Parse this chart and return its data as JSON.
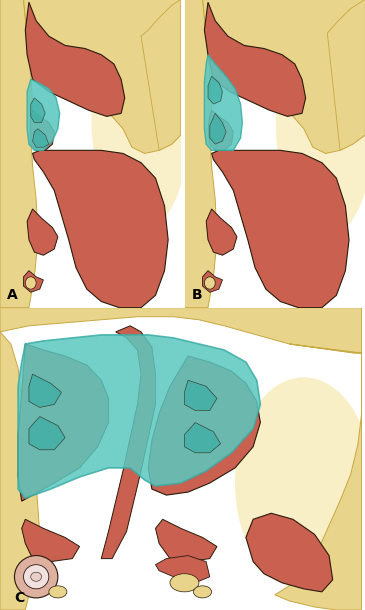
{
  "bg_color": "#ffffff",
  "label_A": "A",
  "label_B": "B",
  "label_C": "C",
  "teal_color": "#5bc8c0",
  "teal_dark": "#3aada5",
  "teal_light": "#80d8d0",
  "red_tissue": "#c96050",
  "red_dark": "#a84030",
  "red_light": "#d88070",
  "bone_color": "#e8d48a",
  "bone_outline": "#c8a840",
  "outline_color": "#2a1a0a",
  "bg_yellow": "#f0d890",
  "label_fontsize": 10
}
